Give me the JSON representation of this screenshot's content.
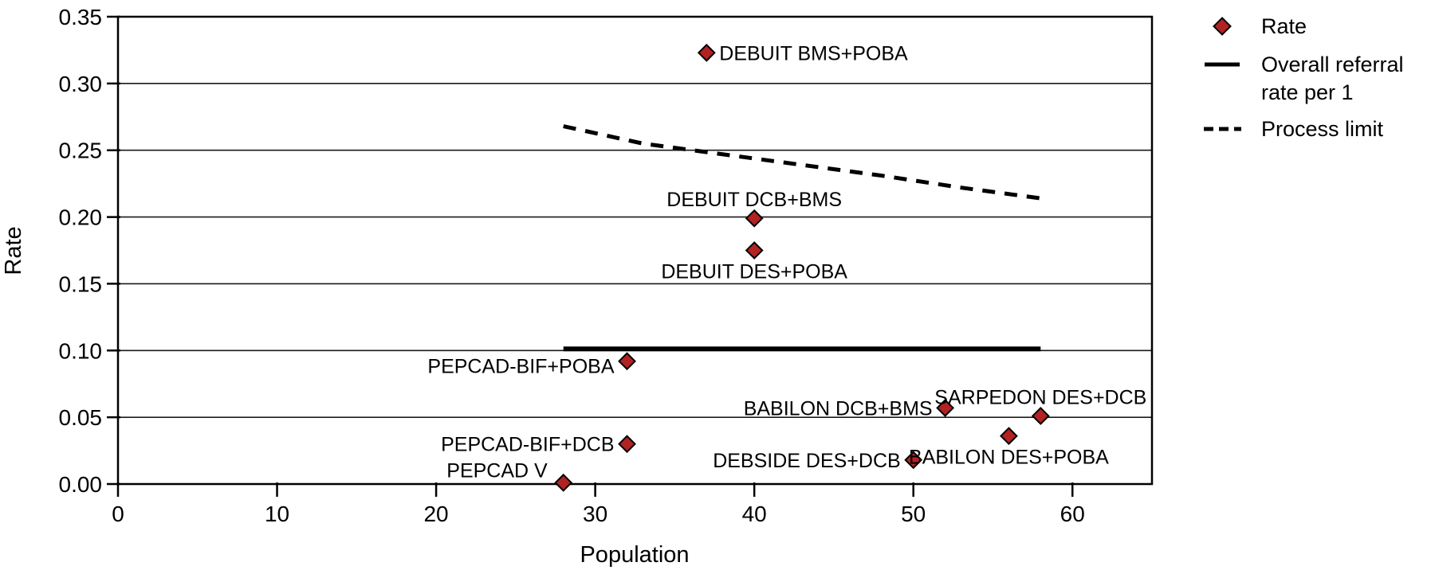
{
  "chart_data": {
    "type": "scatter",
    "title": "",
    "xlabel": "Population",
    "ylabel": "Rate",
    "xlim": [
      0,
      65
    ],
    "ylim": [
      0,
      0.35
    ],
    "x_ticks": {
      "values": [
        0,
        10,
        20,
        30,
        40,
        50,
        60
      ],
      "labels": [
        "0",
        "10",
        "20",
        "30",
        "40",
        "50",
        "60"
      ]
    },
    "y_ticks": {
      "values": [
        0,
        0.05,
        0.1,
        0.15,
        0.2,
        0.25,
        0.3,
        0.35
      ],
      "labels": [
        "0.00",
        "0.05",
        "0.10",
        "0.15",
        "0.20",
        "0.25",
        "0.30",
        "0.35"
      ]
    },
    "grid": "horizontal-only",
    "legend_position": "top-right-outside",
    "colors": {
      "marker_fill": "#B22222",
      "marker_stroke": "#000000",
      "line": "#000000",
      "grid": "#1a1a1a",
      "text": "#000000",
      "background": "#FFFFFF"
    },
    "series": [
      {
        "name": "Rate",
        "type": "scatter",
        "marker": "diamond",
        "points": [
          {
            "label": "DEBUIT BMS+POBA",
            "x": 37,
            "y": 0.323,
            "label_placement": "right"
          },
          {
            "label": "DEBUIT DCB+BMS",
            "x": 40,
            "y": 0.199,
            "label_placement": "above"
          },
          {
            "label": "DEBUIT DES+POBA",
            "x": 40,
            "y": 0.175,
            "label_placement": "below"
          },
          {
            "label": "PEPCAD-BIF+POBA",
            "x": 32,
            "y": 0.092,
            "label_placement": "left-down"
          },
          {
            "label": "BABILON DCB+BMS",
            "x": 52,
            "y": 0.057,
            "label_placement": "left"
          },
          {
            "label": "SARPEDON DES+DCB",
            "x": 58,
            "y": 0.051,
            "label_placement": "above"
          },
          {
            "label": "BABILON DES+POBA",
            "x": 56,
            "y": 0.036,
            "label_placement": "below"
          },
          {
            "label": "PEPCAD-BIF+DCB",
            "x": 32,
            "y": 0.03,
            "label_placement": "left"
          },
          {
            "label": "DEBSIDE DES+DCB",
            "x": 50,
            "y": 0.018,
            "label_placement": "left"
          },
          {
            "label": "PEPCAD V",
            "x": 28,
            "y": 0.001,
            "label_placement": "above-left"
          }
        ]
      },
      {
        "name": "Overall referral rate per 1",
        "type": "line",
        "style": "solid",
        "points": [
          {
            "x": 28,
            "y": 0.1
          },
          {
            "x": 58,
            "y": 0.1
          }
        ]
      },
      {
        "name": "Process limit",
        "type": "line",
        "style": "dashed",
        "points": [
          {
            "x": 28,
            "y": 0.268
          },
          {
            "x": 33,
            "y": 0.255
          },
          {
            "x": 38,
            "y": 0.247
          },
          {
            "x": 43,
            "y": 0.239
          },
          {
            "x": 48,
            "y": 0.231
          },
          {
            "x": 53,
            "y": 0.222
          },
          {
            "x": 58,
            "y": 0.214
          }
        ]
      }
    ],
    "legend": {
      "items": [
        {
          "label": "Rate",
          "lines": [
            "Rate"
          ],
          "marker": "diamond"
        },
        {
          "label": "Overall referral rate per 1",
          "lines": [
            "Overall referral",
            "rate per 1"
          ],
          "marker": "solid-line"
        },
        {
          "label": "Process limit",
          "lines": [
            "Process limit"
          ],
          "marker": "dashed-line"
        }
      ]
    }
  }
}
